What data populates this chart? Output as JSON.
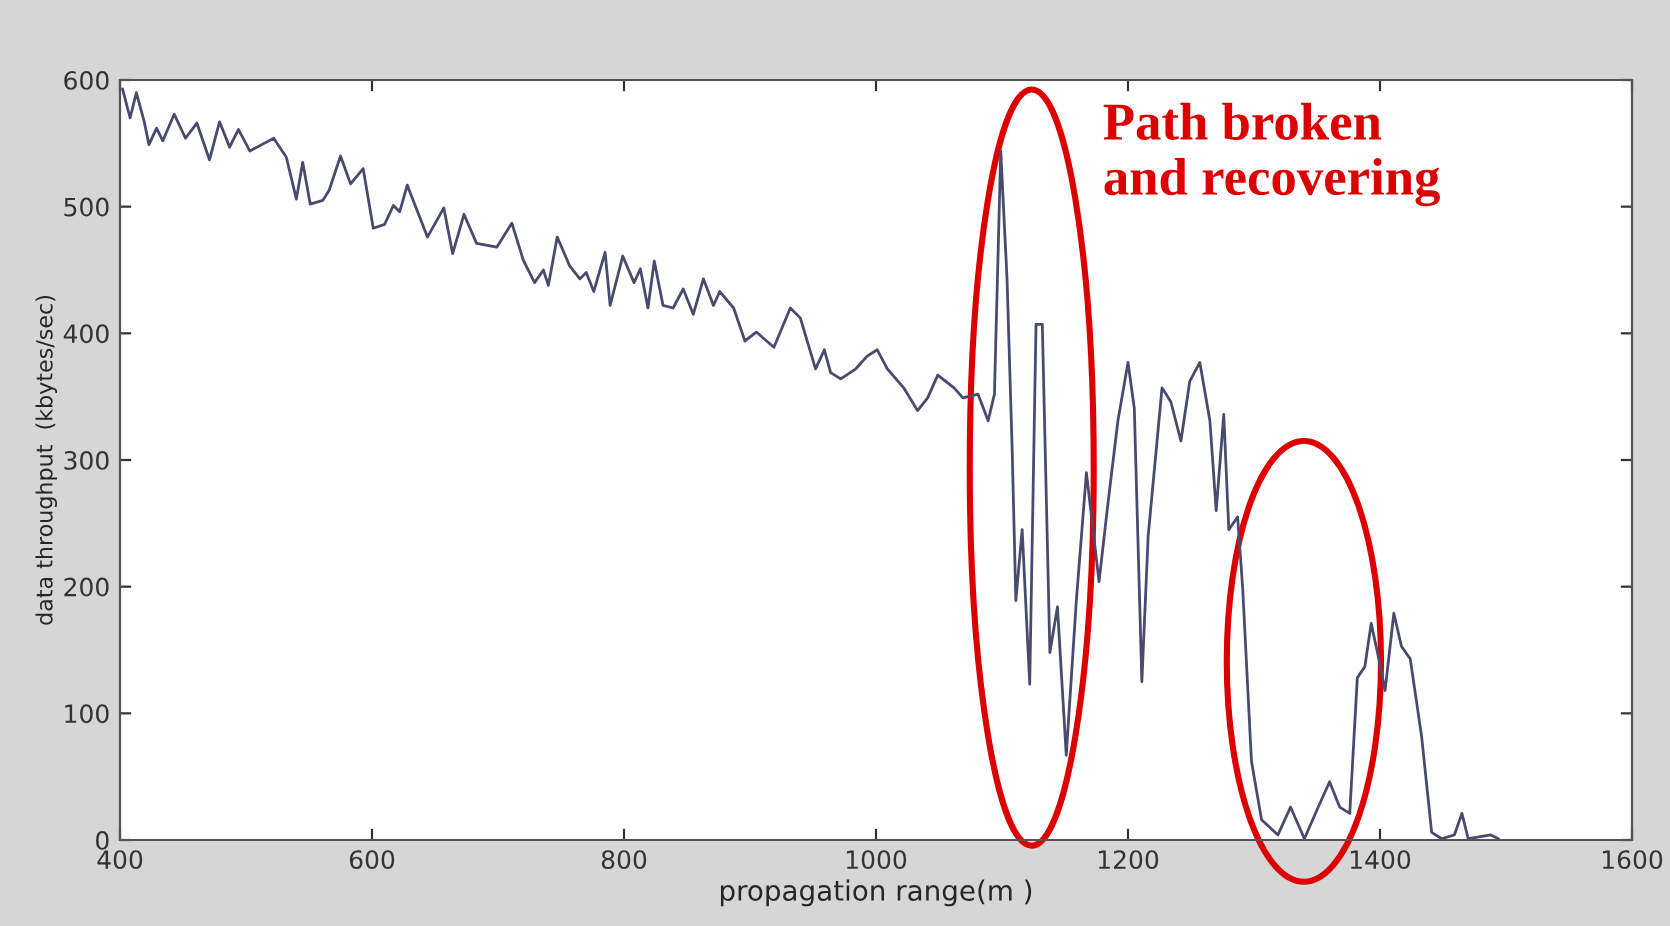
{
  "chart_data": {
    "type": "line",
    "xlabel": "propagation range(m )",
    "ylabel": "data throughput  (kbytes/sec)",
    "xlim": [
      400,
      1600
    ],
    "xticks": [
      400,
      600,
      800,
      1000,
      1200,
      1400,
      1600
    ],
    "ylim": [
      0,
      600
    ],
    "yticks": [
      0,
      100,
      200,
      300,
      400,
      500,
      600
    ],
    "annotations": [
      "Path broken\nand recovering"
    ],
    "series": [
      {
        "color": "#4a4a6e",
        "x": [
          402,
          408,
          413,
          419,
          423,
          429,
          434,
          443,
          452,
          461,
          471,
          479,
          487,
          494,
          503,
          522,
          532,
          540,
          545,
          551,
          561,
          566,
          575,
          583,
          593,
          601,
          610,
          617,
          622,
          628,
          644,
          657,
          664,
          673,
          683,
          699,
          711,
          720,
          729,
          736,
          740,
          747,
          757,
          765,
          770,
          776,
          785,
          789,
          799,
          808,
          813,
          819,
          824,
          831,
          839,
          847,
          855,
          863,
          871,
          876,
          887,
          896,
          905,
          919,
          932,
          940,
          952,
          959,
          964,
          972,
          984,
          993,
          1001,
          1009,
          1022,
          1033,
          1041,
          1049,
          1062,
          1069,
          1081,
          1089,
          1094,
          1099,
          1104,
          1108,
          1111,
          1116,
          1122,
          1127,
          1132,
          1138,
          1144,
          1151,
          1159,
          1167,
          1177,
          1184,
          1192,
          1200,
          1205,
          1211,
          1216,
          1227,
          1234,
          1242,
          1249,
          1257,
          1265,
          1270,
          1276,
          1280,
          1287,
          1291,
          1298,
          1306,
          1319,
          1329,
          1340,
          1351,
          1360,
          1368,
          1376,
          1382,
          1388,
          1393,
          1398,
          1404,
          1411,
          1417,
          1424,
          1433,
          1441,
          1449,
          1459,
          1465,
          1470,
          1488,
          1494
        ],
        "values": [
          593,
          570,
          590,
          568,
          549,
          562,
          552,
          573,
          554,
          566,
          537,
          567,
          547,
          561,
          544,
          554,
          539,
          506,
          535,
          502,
          505,
          513,
          540,
          518,
          530,
          483,
          486,
          501,
          496,
          517,
          476,
          499,
          463,
          494,
          471,
          468,
          487,
          458,
          440,
          450,
          438,
          476,
          453,
          443,
          448,
          433,
          464,
          422,
          461,
          440,
          451,
          420,
          457,
          422,
          420,
          435,
          415,
          443,
          422,
          433,
          420,
          394,
          401,
          389,
          420,
          412,
          372,
          387,
          369,
          364,
          372,
          382,
          387,
          372,
          357,
          339,
          349,
          367,
          357,
          349,
          352,
          331,
          352,
          544,
          443,
          311,
          189,
          245,
          123,
          407,
          407,
          148,
          184,
          67,
          189,
          290,
          204,
          265,
          331,
          377,
          341,
          125,
          240,
          357,
          346,
          315,
          362,
          377,
          331,
          260,
          336,
          245,
          255,
          199,
          62,
          16,
          4,
          26,
          1,
          26,
          46,
          26,
          21,
          128,
          137,
          171,
          148,
          118,
          179,
          153,
          143,
          82,
          6,
          1,
          4,
          21,
          1,
          4,
          1
        ]
      }
    ]
  }
}
